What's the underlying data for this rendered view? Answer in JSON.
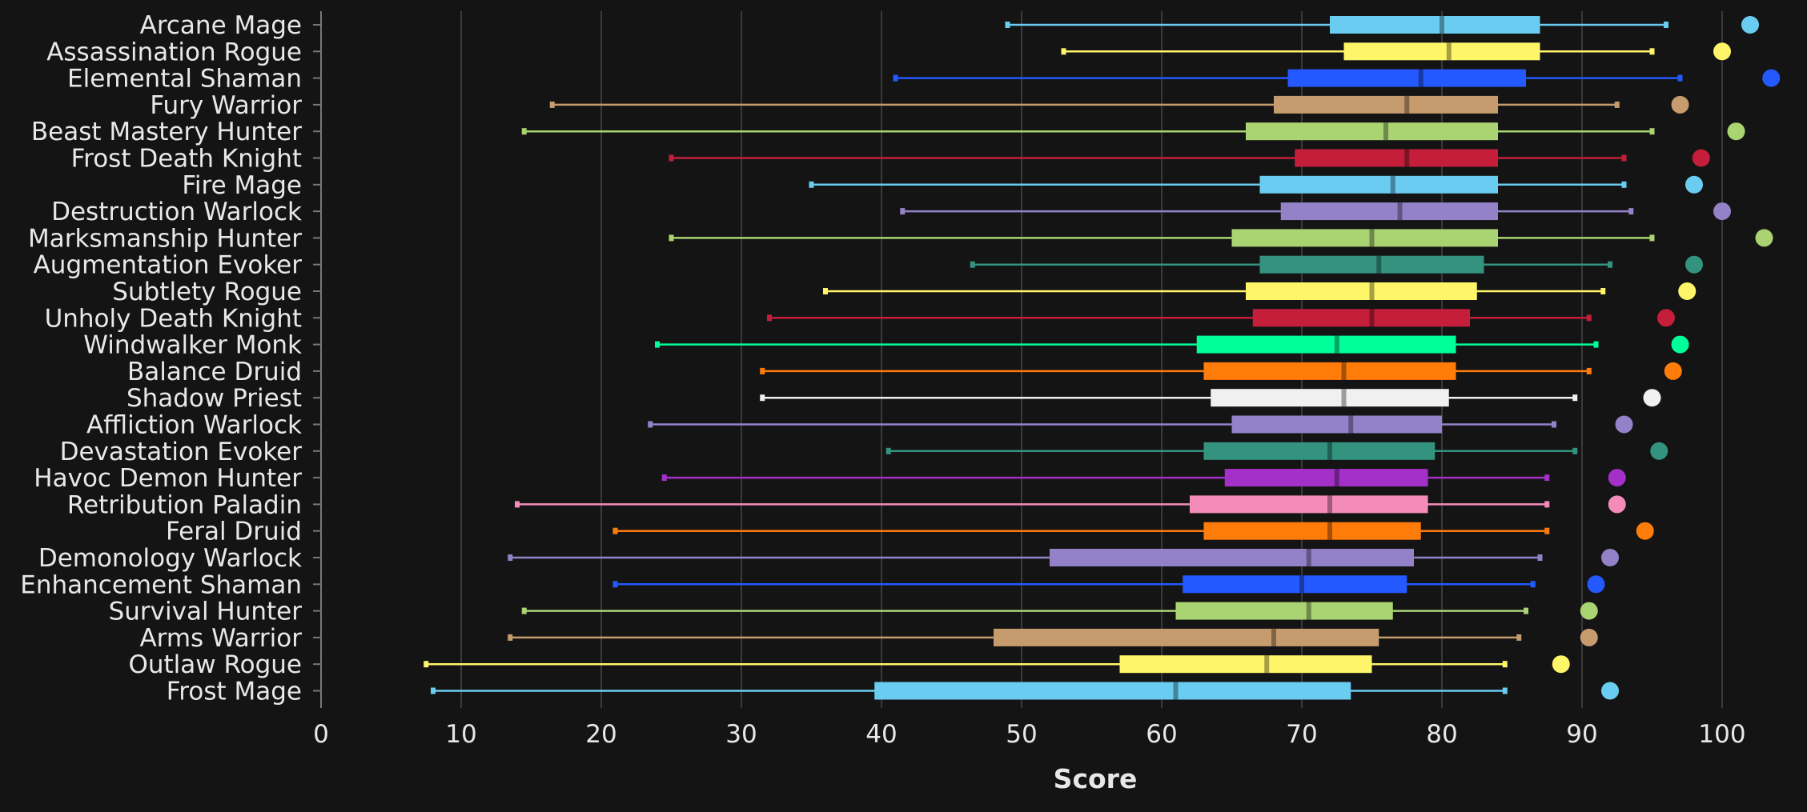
{
  "chart_data": {
    "type": "box",
    "xlabel": "Score",
    "xlim": [
      0,
      103.5
    ],
    "xticks": [
      0,
      10,
      20,
      30,
      40,
      50,
      60,
      70,
      80,
      90,
      100
    ],
    "grid": true,
    "categories": [
      {
        "name": "Arcane Mage",
        "color": "#69ccf0",
        "min": 49,
        "q1": 72,
        "median": 80,
        "q3": 87,
        "max": 96,
        "max_point": 102
      },
      {
        "name": "Assassination Rogue",
        "color": "#fff569",
        "min": 53,
        "q1": 73,
        "median": 80.5,
        "q3": 87,
        "max": 95,
        "max_point": 100
      },
      {
        "name": "Elemental Shaman",
        "color": "#2459ff",
        "min": 41,
        "q1": 69,
        "median": 78.5,
        "q3": 86,
        "max": 97,
        "max_point": 103.5
      },
      {
        "name": "Fury Warrior",
        "color": "#c69b6d",
        "min": 16.5,
        "q1": 68,
        "median": 77.5,
        "q3": 84,
        "max": 92.5,
        "max_point": 97
      },
      {
        "name": "Beast Mastery Hunter",
        "color": "#aad372",
        "min": 14.5,
        "q1": 66,
        "median": 76,
        "q3": 84,
        "max": 95,
        "max_point": 101
      },
      {
        "name": "Frost Death Knight",
        "color": "#c41e3a",
        "min": 25,
        "q1": 69.5,
        "median": 77.5,
        "q3": 84,
        "max": 93,
        "max_point": 98.5
      },
      {
        "name": "Fire Mage",
        "color": "#69ccf0",
        "min": 35,
        "q1": 67,
        "median": 76.5,
        "q3": 84,
        "max": 93,
        "max_point": 98
      },
      {
        "name": "Destruction Warlock",
        "color": "#9482c9",
        "min": 41.5,
        "q1": 68.5,
        "median": 77,
        "q3": 84,
        "max": 93.5,
        "max_point": 100
      },
      {
        "name": "Marksmanship Hunter",
        "color": "#aad372",
        "min": 25,
        "q1": 65,
        "median": 75,
        "q3": 84,
        "max": 95,
        "max_point": 103
      },
      {
        "name": "Augmentation Evoker",
        "color": "#33937f",
        "min": 46.5,
        "q1": 67,
        "median": 75.5,
        "q3": 83,
        "max": 92,
        "max_point": 98
      },
      {
        "name": "Subtlety Rogue",
        "color": "#fff569",
        "min": 36,
        "q1": 66,
        "median": 75,
        "q3": 82.5,
        "max": 91.5,
        "max_point": 97.5
      },
      {
        "name": "Unholy Death Knight",
        "color": "#c41e3a",
        "min": 32,
        "q1": 66.5,
        "median": 75,
        "q3": 82,
        "max": 90.5,
        "max_point": 96
      },
      {
        "name": "Windwalker Monk",
        "color": "#00ff98",
        "min": 24,
        "q1": 62.5,
        "median": 72.5,
        "q3": 81,
        "max": 91,
        "max_point": 97
      },
      {
        "name": "Balance Druid",
        "color": "#ff7c0a",
        "min": 31.5,
        "q1": 63,
        "median": 73,
        "q3": 81,
        "max": 90.5,
        "max_point": 96.5
      },
      {
        "name": "Shadow Priest",
        "color": "#f0f0f0",
        "min": 31.5,
        "q1": 63.5,
        "median": 73,
        "q3": 80.5,
        "max": 89.5,
        "max_point": 95
      },
      {
        "name": "Affliction Warlock",
        "color": "#9482c9",
        "min": 23.5,
        "q1": 65,
        "median": 73.5,
        "q3": 80,
        "max": 88,
        "max_point": 93
      },
      {
        "name": "Devastation Evoker",
        "color": "#33937f",
        "min": 40.5,
        "q1": 63,
        "median": 72,
        "q3": 79.5,
        "max": 89.5,
        "max_point": 95.5
      },
      {
        "name": "Havoc Demon Hunter",
        "color": "#a330c9",
        "min": 24.5,
        "q1": 64.5,
        "median": 72.5,
        "q3": 79,
        "max": 87.5,
        "max_point": 92.5
      },
      {
        "name": "Retribution Paladin",
        "color": "#f48cba",
        "min": 14,
        "q1": 62,
        "median": 72,
        "q3": 79,
        "max": 87.5,
        "max_point": 92.5
      },
      {
        "name": "Feral Druid",
        "color": "#ff7c0a",
        "min": 21,
        "q1": 63,
        "median": 72,
        "q3": 78.5,
        "max": 87.5,
        "max_point": 94.5
      },
      {
        "name": "Demonology Warlock",
        "color": "#9482c9",
        "min": 13.5,
        "q1": 52,
        "median": 70.5,
        "q3": 78,
        "max": 87,
        "max_point": 92
      },
      {
        "name": "Enhancement Shaman",
        "color": "#2459ff",
        "min": 21,
        "q1": 61.5,
        "median": 70,
        "q3": 77.5,
        "max": 86.5,
        "max_point": 91
      },
      {
        "name": "Survival Hunter",
        "color": "#aad372",
        "min": 14.5,
        "q1": 61,
        "median": 70.5,
        "q3": 76.5,
        "max": 86,
        "max_point": 90.5
      },
      {
        "name": "Arms Warrior",
        "color": "#c69b6d",
        "min": 13.5,
        "q1": 48,
        "median": 68,
        "q3": 75.5,
        "max": 85.5,
        "max_point": 90.5
      },
      {
        "name": "Outlaw Rogue",
        "color": "#fff569",
        "min": 7.5,
        "q1": 57,
        "median": 67.5,
        "q3": 75,
        "max": 84.5,
        "max_point": 88.5
      },
      {
        "name": "Frost Mage",
        "color": "#69ccf0",
        "min": 8,
        "q1": 39.5,
        "median": 61,
        "q3": 73.5,
        "max": 84.5,
        "max_point": 92
      }
    ]
  }
}
